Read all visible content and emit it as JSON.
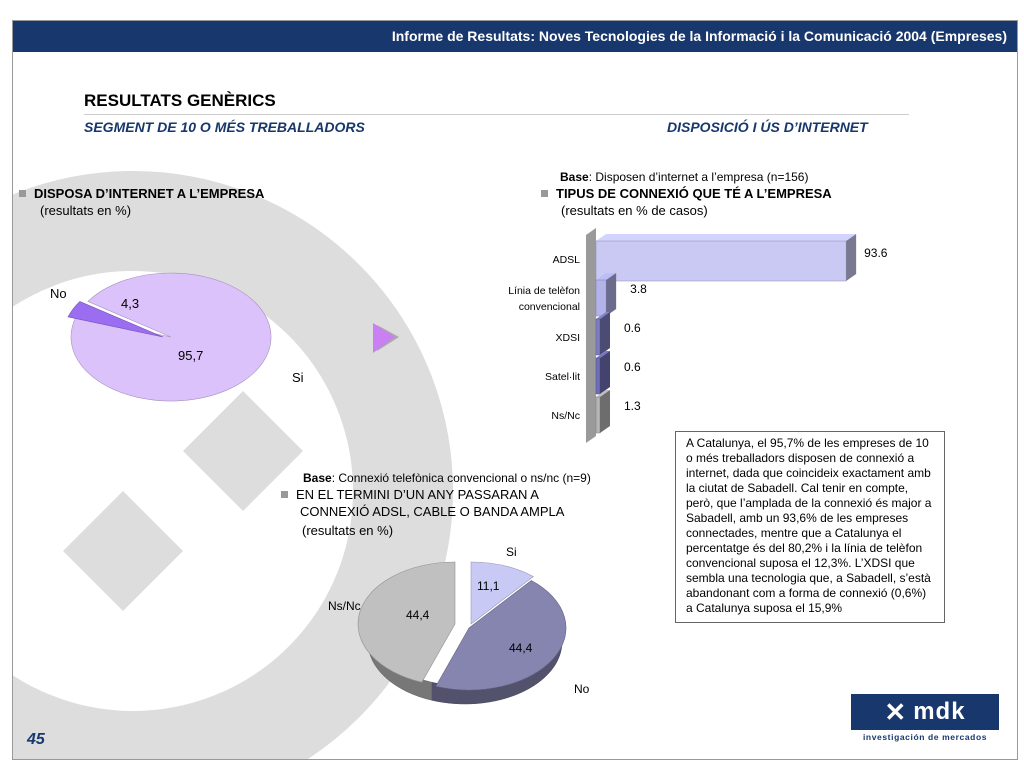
{
  "header": {
    "title": "Informe de Resultats: Noves Tecnologies de la Informació i la Comunicació 2004 (Empreses)"
  },
  "page": {
    "title": "RESULTATS GENÈRICS",
    "subtitle_left": "SEGMENT DE 10 O MÉS TREBALLADORS",
    "subtitle_right": "DISPOSICIÓ I ÚS D’INTERNET",
    "number": "45"
  },
  "chart1": {
    "heading": "DISPOSA D’INTERNET A L’EMPRESA",
    "units": "(resultats en %)"
  },
  "chart2": {
    "base_label": "Base",
    "base_text": ": Disposen d’internet a l’empresa (n=156)",
    "heading": "TIPUS DE CONNEXIÓ QUE TÉ A L’EMPRESA",
    "units": "(resultats en % de casos)"
  },
  "chart3": {
    "base_label": "Base",
    "base_text": ": Connexió telefònica convencional  o ns/nc (n=9)",
    "heading_line1": "EN EL TERMINI D’UN ANY PASSARAN A",
    "heading_line2": "CONNEXIÓ ADSL, CABLE O BANDA AMPLA",
    "units": "(resultats en %)"
  },
  "chart_data": [
    {
      "type": "pie",
      "labels": [
        "Si",
        "No"
      ],
      "values": [
        95.7,
        4.3
      ],
      "data_labels": [
        "95,7",
        "4,3"
      ],
      "colors": [
        "#dcc2fa",
        "#9b6df0"
      ]
    },
    {
      "type": "bar",
      "orientation": "horizontal",
      "categories": [
        "ADSL",
        "Línia de telèfon convencional",
        "XDSI",
        "Satel·lit",
        "Ns/Nc"
      ],
      "category_lines": [
        [
          "ADSL"
        ],
        [
          "Línia de telèfon",
          "convencional"
        ],
        [
          "XDSI"
        ],
        [
          "Satel·lit"
        ],
        [
          "Ns/Nc"
        ]
      ],
      "values": [
        93.6,
        3.8,
        0.6,
        0.6,
        1.3
      ],
      "data_labels": [
        "93.6",
        "3.8",
        "0.6",
        "0.6",
        "1.3"
      ],
      "colors": [
        "#c9c9f3",
        "#b3b3ea",
        "#7d7dc0",
        "#6f6fb8",
        "#b5b5b5"
      ]
    },
    {
      "type": "pie",
      "labels": [
        "Si",
        "No",
        "Ns/Nc"
      ],
      "values": [
        11.1,
        44.4,
        44.4
      ],
      "data_labels": [
        "11,1",
        "44,4",
        "44,4"
      ],
      "colors": [
        "#c9c9f5",
        "#8585b0",
        "#c0c0c0"
      ]
    }
  ],
  "textbox": {
    "text": "A Catalunya, el 95,7% de les empreses de 10 o més treballadors disposen de connexió a internet, dada que coincideix exactament amb la ciutat de Sabadell. Cal tenir en compte, però, que l’amplada de la connexió és major a Sabadell, amb un 93,6% de les empreses connectades, mentre que a Catalunya el percentatge és del 80,2% i la línia de telèfon convencional suposa el 12,3%. L’XDSI que sembla una tecnologia que, a Sabadell, s’està abandonant com a forma de connexió (0,6%) a Catalunya suposa el 15,9%"
  },
  "logo": {
    "name": "mdk",
    "tagline": "investigación de mercados"
  },
  "colors": {
    "header": "#17376d",
    "accent": "#c17ff0",
    "deco": "#dcdcdc"
  }
}
